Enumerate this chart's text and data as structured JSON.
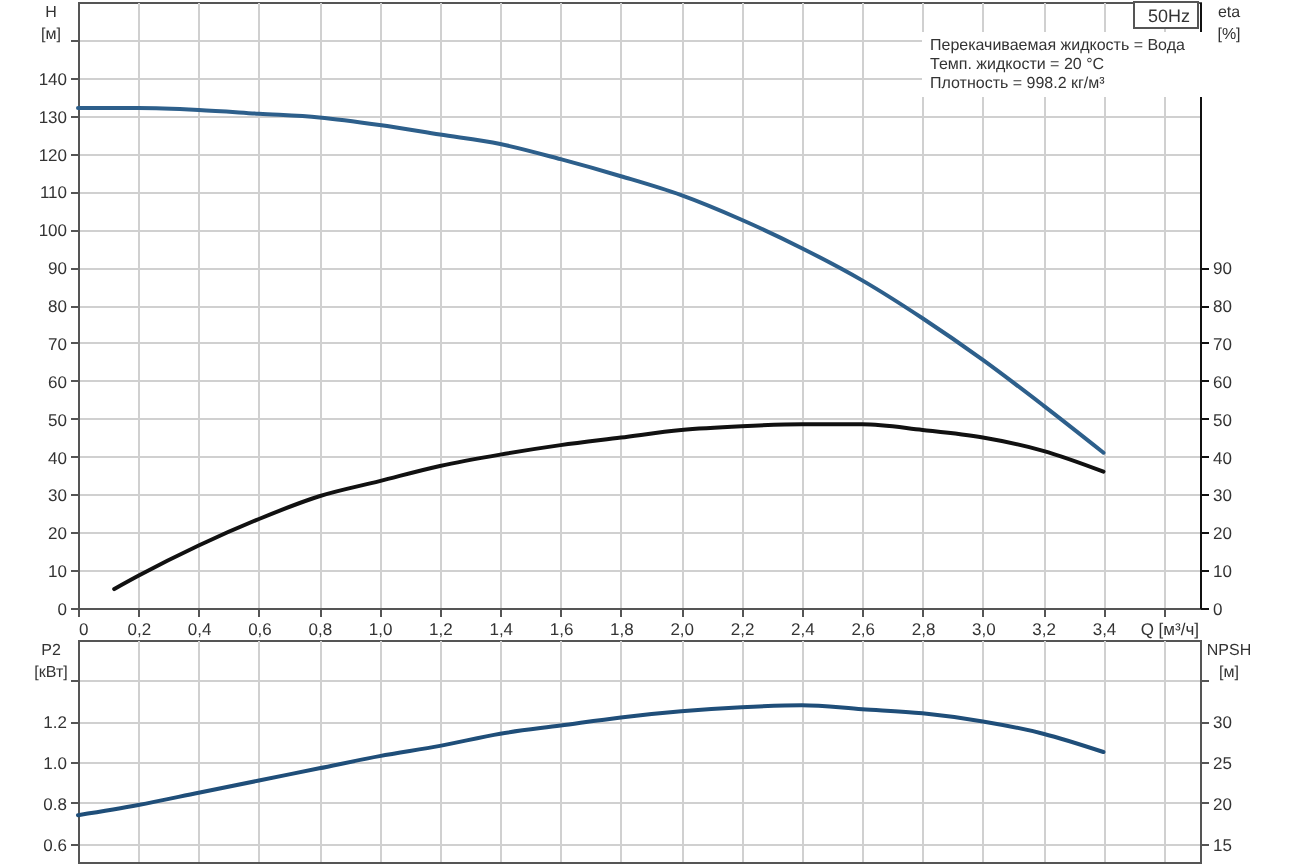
{
  "chart_data": [
    {
      "type": "line",
      "xlabel": "Q [м³/ч]",
      "ylabel": "H [м]",
      "y2label": "eta [%]",
      "xlim": [
        0,
        3.72
      ],
      "xticks": [
        0,
        {
          "value": 0.2,
          "label": "0,2"
        },
        {
          "value": 0.4,
          "label": "0,4"
        },
        {
          "value": 0.6,
          "label": "0,6"
        },
        {
          "value": 0.8,
          "label": "0,8"
        },
        {
          "value": 1.0,
          "label": "1,0"
        },
        {
          "value": 1.2,
          "label": "1,2"
        },
        {
          "value": 1.4,
          "label": "1,4"
        },
        {
          "value": 1.6,
          "label": "1,6"
        },
        {
          "value": 1.8,
          "label": "1,8"
        },
        {
          "value": 2.0,
          "label": "2,0"
        },
        {
          "value": 2.2,
          "label": "2,2"
        },
        {
          "value": 2.4,
          "label": "2,4"
        },
        {
          "value": 2.6,
          "label": "2,6"
        },
        {
          "value": 2.8,
          "label": "2,8"
        },
        {
          "value": 3.0,
          "label": "3,0"
        },
        {
          "value": 3.2,
          "label": "3,2"
        },
        {
          "value": 3.4,
          "label": "3,4"
        },
        {
          "value": 3.6,
          "label": null
        }
      ],
      "ylim": [
        0,
        160
      ],
      "yticks": [
        0,
        10,
        20,
        30,
        40,
        50,
        60,
        70,
        80,
        90,
        100,
        110,
        120,
        130,
        140,
        {
          "value": 150,
          "label": null
        }
      ],
      "y2lim": [
        0,
        160
      ],
      "y2ticks": [
        0,
        10,
        20,
        30,
        40,
        50,
        60,
        70,
        80,
        90
      ],
      "grid": true,
      "annotations": [
        "50Hz",
        "Перекачиваемая жидкость = Вода",
        "Темп. жидкости = 20 °C",
        "Плотность = 998.2 кг/м³"
      ],
      "series": [
        {
          "color": "#2d5f8b",
          "x": [
            0,
            0.2,
            0.4,
            0.6,
            0.8,
            1.0,
            1.2,
            1.4,
            1.6,
            1.8,
            2.0,
            2.2,
            2.4,
            2.6,
            2.8,
            3.0,
            3.2,
            3.4
          ],
          "values": [
            132,
            132,
            131.5,
            130.5,
            129.5,
            127.5,
            125,
            122.5,
            118.5,
            114,
            109,
            102.5,
            95,
            86.5,
            76.5,
            65.5,
            53.5,
            41
          ]
        },
        {
          "color": "#111111",
          "axis": "y2",
          "x": [
            0.12,
            0.2,
            0.4,
            0.6,
            0.8,
            1.0,
            1.2,
            1.4,
            1.6,
            1.8,
            2.0,
            2.2,
            2.4,
            2.6,
            2.8,
            3.0,
            3.2,
            3.4
          ],
          "values": [
            5,
            8.5,
            16.5,
            23.5,
            29.5,
            33.5,
            37.5,
            40.5,
            43,
            45,
            47,
            48,
            48.5,
            48.5,
            47,
            45,
            41.5,
            36
          ]
        }
      ]
    },
    {
      "type": "line",
      "ylabel": "P2 [кВт]",
      "y2label": "NPSH [м]",
      "xlim": [
        0,
        3.72
      ],
      "xticks": [
        0,
        0.2,
        0.4,
        0.6,
        0.8,
        1.0,
        1.2,
        1.4,
        1.6,
        1.8,
        2.0,
        2.2,
        2.4,
        2.6,
        2.8,
        3.0,
        3.2,
        3.4,
        3.6
      ],
      "ylim": [
        0.51,
        1.6
      ],
      "yticks": [
        {
          "value": 0.6,
          "label": "0.6"
        },
        {
          "value": 0.8,
          "label": "0.8"
        },
        {
          "value": 1.0,
          "label": "1.0"
        },
        {
          "value": 1.2,
          "label": "1.2"
        },
        {
          "value": 1.4,
          "label": null
        }
      ],
      "y2lim": [
        12.75,
        40
      ],
      "y2ticks": [
        15,
        20,
        25,
        30,
        {
          "value": 35,
          "label": null
        }
      ],
      "grid": true,
      "tick_labels": "y",
      "series": [
        {
          "color": "#1f4e79",
          "x": [
            0,
            0.2,
            0.4,
            0.6,
            0.8,
            1.0,
            1.2,
            1.4,
            1.6,
            1.8,
            2.0,
            2.2,
            2.4,
            2.6,
            2.8,
            3.0,
            3.2,
            3.4
          ],
          "values": [
            0.74,
            0.79,
            0.85,
            0.91,
            0.97,
            1.03,
            1.08,
            1.14,
            1.18,
            1.22,
            1.25,
            1.27,
            1.28,
            1.26,
            1.24,
            1.2,
            1.14,
            1.05
          ]
        }
      ]
    }
  ]
}
